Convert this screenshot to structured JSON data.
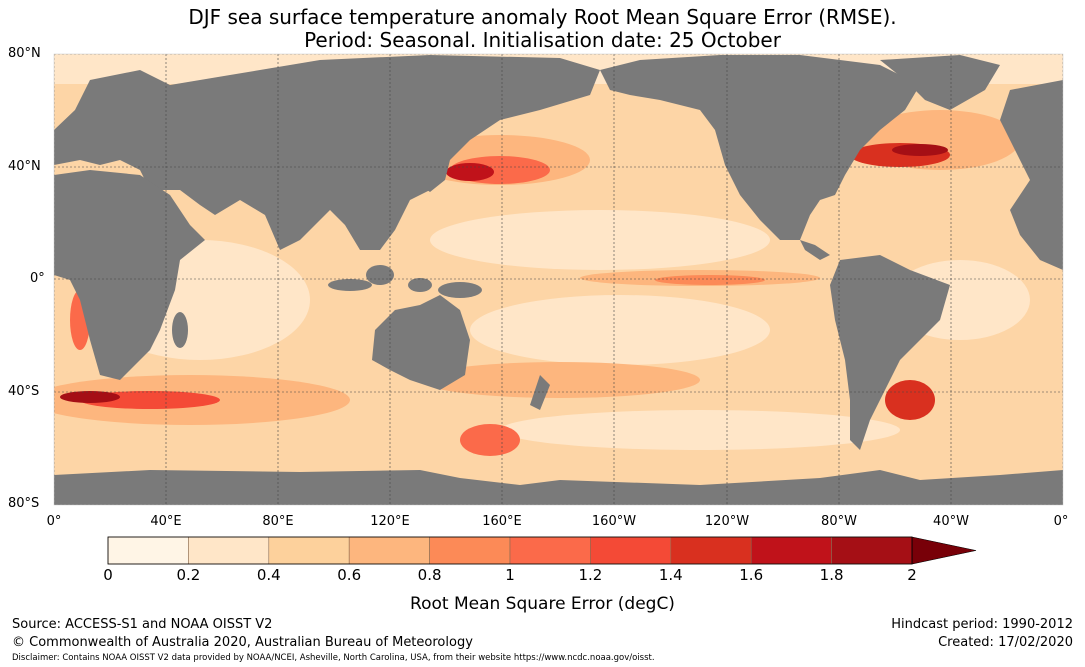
{
  "title_line1": "DJF sea surface temperature anomaly Root Mean Square Error (RMSE).",
  "title_line2": "Period: Seasonal. Initialisation date: 25 October",
  "lat_labels": [
    "80°N",
    "40°N",
    "0°",
    "40°S",
    "80°S"
  ],
  "lon_labels": [
    "0°",
    "40°E",
    "80°E",
    "120°E",
    "160°E",
    "160°W",
    "120°W",
    "80°W",
    "40°W",
    "0°"
  ],
  "colorbar": {
    "label": "Root Mean Square Error (degC)",
    "ticks": [
      "0",
      "0.2",
      "0.4",
      "0.6",
      "0.8",
      "1",
      "1.2",
      "1.4",
      "1.6",
      "1.8",
      "2"
    ],
    "colors": [
      "#fff5e6",
      "#ffe6c8",
      "#fdd19c",
      "#fdb67e",
      "#fc8a57",
      "#fb6a4a",
      "#f44a36",
      "#d9301f",
      "#c0121a",
      "#a50f15"
    ],
    "extend_color": "#780008"
  },
  "colors": {
    "land": "#7a7a7a",
    "ocean_base": "#fdd5a6",
    "grid": "#444444"
  },
  "footer": {
    "source": "Source: ACCESS-S1 and NOAA OISST V2",
    "copyright": "© Commonwealth of Australia 2020, Australian Bureau of Meteorology",
    "disclaimer": "Disclaimer: Contains NOAA OISST V2 data provided by NOAA/NCEI, Asheville, North Carolina, USA, from their website https://www.ncdc.noaa.gov/oisst.",
    "hindcast": "Hindcast period: 1990-2012",
    "created": "Created: 17/02/2020"
  }
}
